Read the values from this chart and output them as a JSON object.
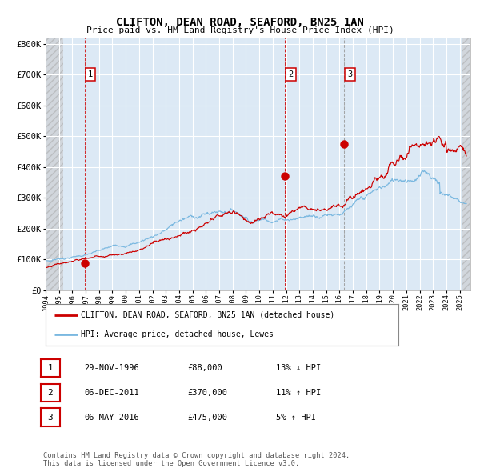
{
  "title": "CLIFTON, DEAN ROAD, SEAFORD, BN25 1AN",
  "subtitle": "Price paid vs. HM Land Registry's House Price Index (HPI)",
  "ytick_vals": [
    0,
    100000,
    200000,
    300000,
    400000,
    500000,
    600000,
    700000,
    800000
  ],
  "ylim": [
    0,
    820000
  ],
  "xlim_start": 1994.0,
  "xlim_end": 2025.8,
  "bg_color": "#dce9f5",
  "hpi_color": "#7ab8e0",
  "price_color": "#cc0000",
  "grid_color": "#ffffff",
  "sale_dates": [
    1996.91,
    2011.92,
    2016.35
  ],
  "sale_prices": [
    88000,
    370000,
    475000
  ],
  "vline_colors": [
    "#cc0000",
    "#cc0000",
    "#999999"
  ],
  "legend_line1": "CLIFTON, DEAN ROAD, SEAFORD, BN25 1AN (detached house)",
  "legend_line2": "HPI: Average price, detached house, Lewes",
  "table_rows": [
    {
      "num": "1",
      "date": "29-NOV-1996",
      "price": "£88,000",
      "hpi": "13% ↓ HPI"
    },
    {
      "num": "2",
      "date": "06-DEC-2011",
      "price": "£370,000",
      "hpi": "11% ↑ HPI"
    },
    {
      "num": "3",
      "date": "06-MAY-2016",
      "price": "£475,000",
      "hpi": "5% ↑ HPI"
    }
  ],
  "footnote": "Contains HM Land Registry data © Crown copyright and database right 2024.\nThis data is licensed under the Open Government Licence v3.0.",
  "xtick_years": [
    1994,
    1995,
    1996,
    1997,
    1998,
    1999,
    2000,
    2001,
    2002,
    2003,
    2004,
    2005,
    2006,
    2007,
    2008,
    2009,
    2010,
    2011,
    2012,
    2013,
    2014,
    2015,
    2016,
    2017,
    2018,
    2019,
    2020,
    2021,
    2022,
    2023,
    2024,
    2025
  ]
}
